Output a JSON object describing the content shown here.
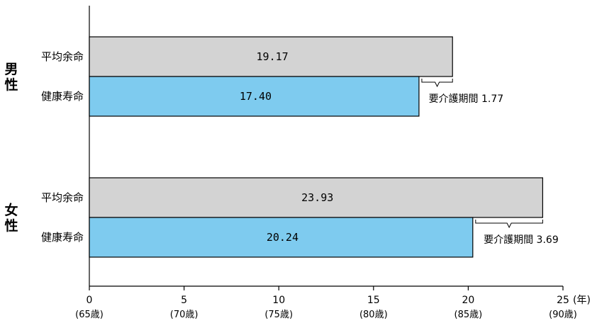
{
  "chart_data": {
    "type": "bar",
    "orientation": "horizontal",
    "title": "",
    "groups": [
      {
        "label_lines": [
          "男",
          "性"
        ],
        "bars": [
          {
            "label": "平均余命",
            "value": 19.17,
            "value_label": "19.17",
            "color": "#d3d3d3"
          },
          {
            "label": "健康寿命",
            "value": 17.4,
            "value_label": "17.40",
            "color": "#7ecbef"
          }
        ],
        "annotation": {
          "label": "要介護期間 1.77",
          "value": 1.77,
          "from": 17.4,
          "to": 19.17
        }
      },
      {
        "label_lines": [
          "女",
          "性"
        ],
        "bars": [
          {
            "label": "平均余命",
            "value": 23.93,
            "value_label": "23.93",
            "color": "#d3d3d3"
          },
          {
            "label": "健康寿命",
            "value": 20.24,
            "value_label": "20.24",
            "color": "#7ecbef"
          }
        ],
        "annotation": {
          "label": "要介護期間 3.69",
          "value": 3.69,
          "from": 20.24,
          "to": 23.93
        }
      }
    ],
    "x_axis": {
      "min": 0,
      "max": 25,
      "ticks": [
        0,
        5,
        10,
        15,
        20,
        25
      ],
      "tick_labels": [
        "0",
        "5",
        "10",
        "15",
        "20",
        "25"
      ],
      "sub_labels": [
        "(65歳)",
        "(70歳)",
        "(75歳)",
        "(80歳)",
        "(85歳)",
        "(90歳)"
      ],
      "unit": "(年)"
    },
    "grid": false,
    "legend": "none"
  }
}
